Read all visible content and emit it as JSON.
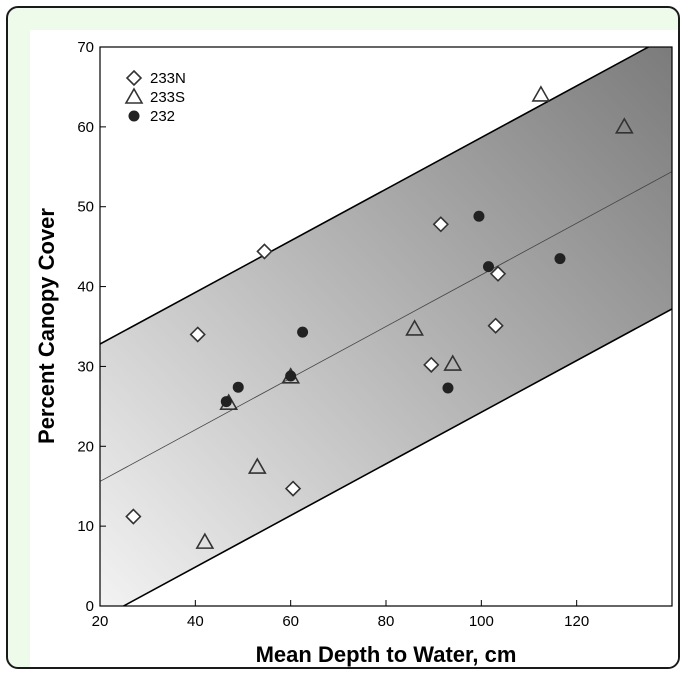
{
  "chart_data": {
    "type": "scatter",
    "xlabel": "Mean Depth to Water, cm",
    "ylabel": "Percent Canopy Cover",
    "xlim": [
      20,
      140
    ],
    "ylim": [
      0,
      70
    ],
    "xticks": [
      "20",
      "40",
      "60",
      "80",
      "100",
      "120"
    ],
    "xtick_values": [
      20,
      40,
      60,
      80,
      100,
      120
    ],
    "yticks": [
      "0",
      "10",
      "20",
      "30",
      "40",
      "50",
      "60",
      "70"
    ],
    "ytick_values": [
      0,
      10,
      20,
      30,
      40,
      50,
      60,
      70
    ],
    "legend_position": "top-left",
    "series": [
      {
        "name": "233N",
        "marker": "diamond",
        "points": [
          [
            27,
            11.2
          ],
          [
            40.5,
            34
          ],
          [
            54.5,
            44.4
          ],
          [
            60.5,
            14.7
          ],
          [
            89.5,
            30.2
          ],
          [
            91.5,
            47.8
          ],
          [
            103,
            35.1
          ],
          [
            103.5,
            41.6
          ]
        ]
      },
      {
        "name": "233S",
        "marker": "triangle",
        "points": [
          [
            42,
            8
          ],
          [
            47,
            25.4
          ],
          [
            53,
            17.4
          ],
          [
            60,
            28.7
          ],
          [
            86,
            34.7
          ],
          [
            94,
            30.3
          ],
          [
            112.5,
            64
          ],
          [
            130,
            60
          ]
        ]
      },
      {
        "name": "232",
        "marker": "circle",
        "points": [
          [
            46.5,
            25.6
          ],
          [
            49,
            27.4
          ],
          [
            60,
            28.8
          ],
          [
            62.5,
            34.3
          ],
          [
            93,
            27.3
          ],
          [
            99.5,
            48.8
          ],
          [
            101.5,
            42.5
          ],
          [
            116.5,
            43.5
          ]
        ]
      }
    ],
    "regression_line": {
      "x": [
        20,
        140
      ],
      "y": [
        15.6,
        54.4
      ]
    },
    "band_upper": {
      "x": [
        20,
        140
      ],
      "y": [
        32.8,
        71.6
      ]
    },
    "band_lower": {
      "x": [
        20,
        140
      ],
      "y": [
        -1.6,
        37.2
      ]
    }
  }
}
